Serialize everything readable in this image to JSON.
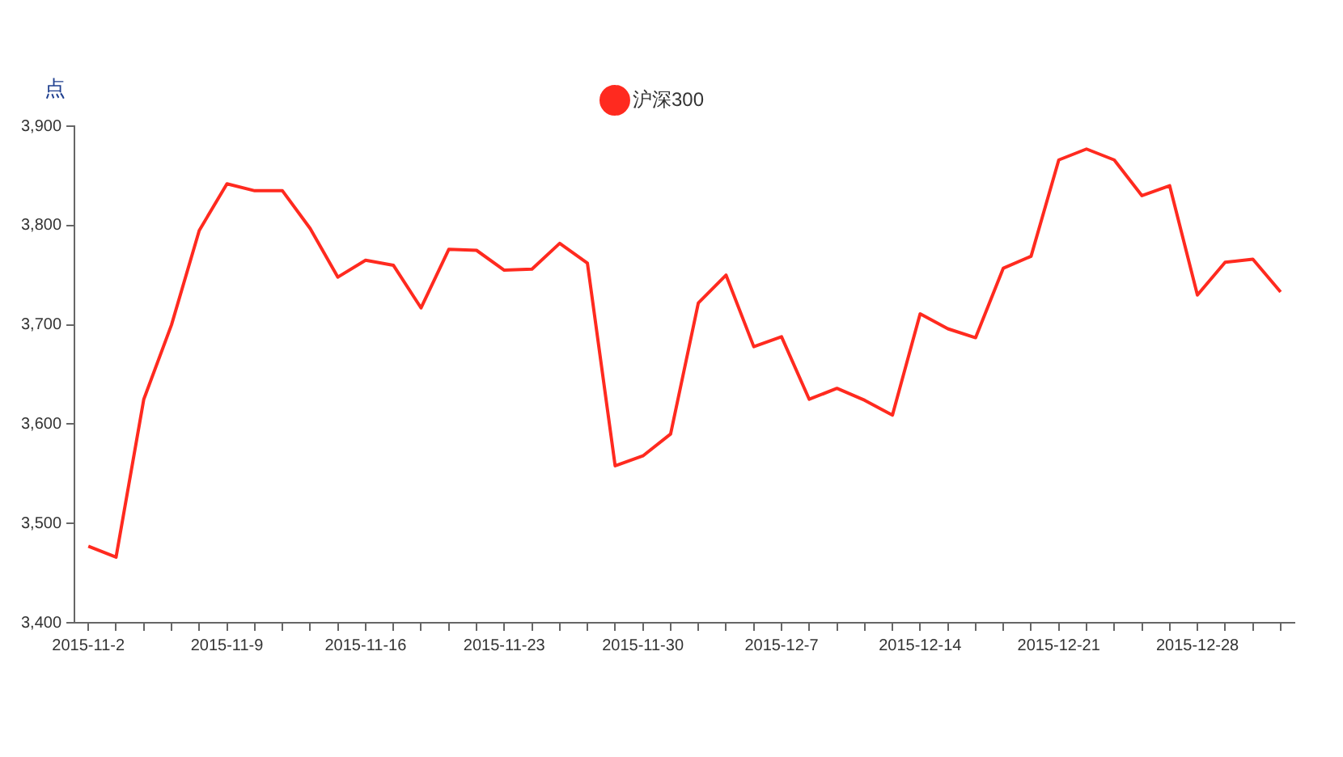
{
  "chart_data": {
    "type": "line",
    "ylabel": "点",
    "legend": "top",
    "marker": "none",
    "grid": false,
    "line_style": "solid",
    "categories": [
      "2015-11-2",
      null,
      null,
      null,
      null,
      "2015-11-9",
      null,
      null,
      null,
      null,
      "2015-11-16",
      null,
      null,
      null,
      null,
      "2015-11-23",
      null,
      null,
      null,
      null,
      "2015-11-30",
      null,
      null,
      null,
      null,
      "2015-12-7",
      null,
      null,
      null,
      null,
      "2015-12-14",
      null,
      null,
      null,
      null,
      "2015-12-21",
      null,
      null,
      null,
      null,
      "2015-12-28",
      null,
      null,
      null
    ],
    "series": [
      {
        "name": "沪深300",
        "color": "#ff2a1f",
        "values": [
          3477,
          3466,
          3625,
          3700,
          3795,
          3842,
          3835,
          3835,
          3797,
          3748,
          3765,
          3760,
          3717,
          3776,
          3775,
          3755,
          3756,
          3782,
          3762,
          3558,
          3568,
          3590,
          3722,
          3750,
          3678,
          3688,
          3625,
          3636,
          3624,
          3609,
          3711,
          3696,
          3687,
          3757,
          3769,
          3866,
          3877,
          3866,
          3830,
          3840,
          3730,
          3763,
          3766,
          3733
        ]
      }
    ],
    "ylim": [
      3400,
      3900
    ],
    "yticks": [
      {
        "value": 3400,
        "label": "3,400"
      },
      {
        "value": 3500,
        "label": "3,500"
      },
      {
        "value": 3600,
        "label": "3,600"
      },
      {
        "value": 3700,
        "label": "3,700"
      },
      {
        "value": 3800,
        "label": "3,800"
      },
      {
        "value": 3900,
        "label": "3,900"
      }
    ]
  }
}
